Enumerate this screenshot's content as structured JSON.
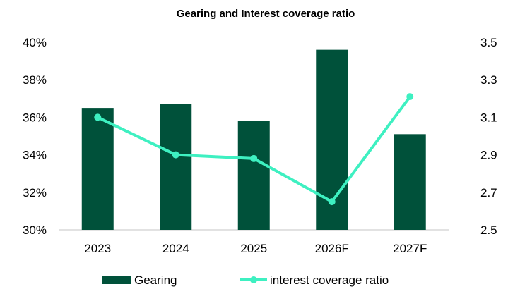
{
  "chart_data": {
    "type": "bar+line",
    "title": "Gearing and Interest coverage ratio",
    "categories": [
      "2023",
      "2024",
      "2025",
      "2026F",
      "2027F"
    ],
    "series": [
      {
        "name": "Gearing",
        "type": "bar",
        "axis": "left",
        "values": [
          36.5,
          36.7,
          35.8,
          39.6,
          35.1
        ],
        "color": "#00513A"
      },
      {
        "name": "interest coverage ratio",
        "type": "line",
        "axis": "right",
        "values": [
          3.1,
          2.9,
          2.88,
          2.65,
          3.21
        ],
        "color": "#3EF0C1"
      }
    ],
    "y_left": {
      "range": [
        30,
        40
      ],
      "ticks": [
        "30%",
        "32%",
        "34%",
        "36%",
        "38%",
        "40%"
      ]
    },
    "y_right": {
      "range": [
        2.5,
        3.5
      ],
      "ticks": [
        "2.5",
        "2.7",
        "2.9",
        "3.1",
        "3.3",
        "3.5"
      ]
    },
    "grid": false,
    "legend": "bottom"
  }
}
